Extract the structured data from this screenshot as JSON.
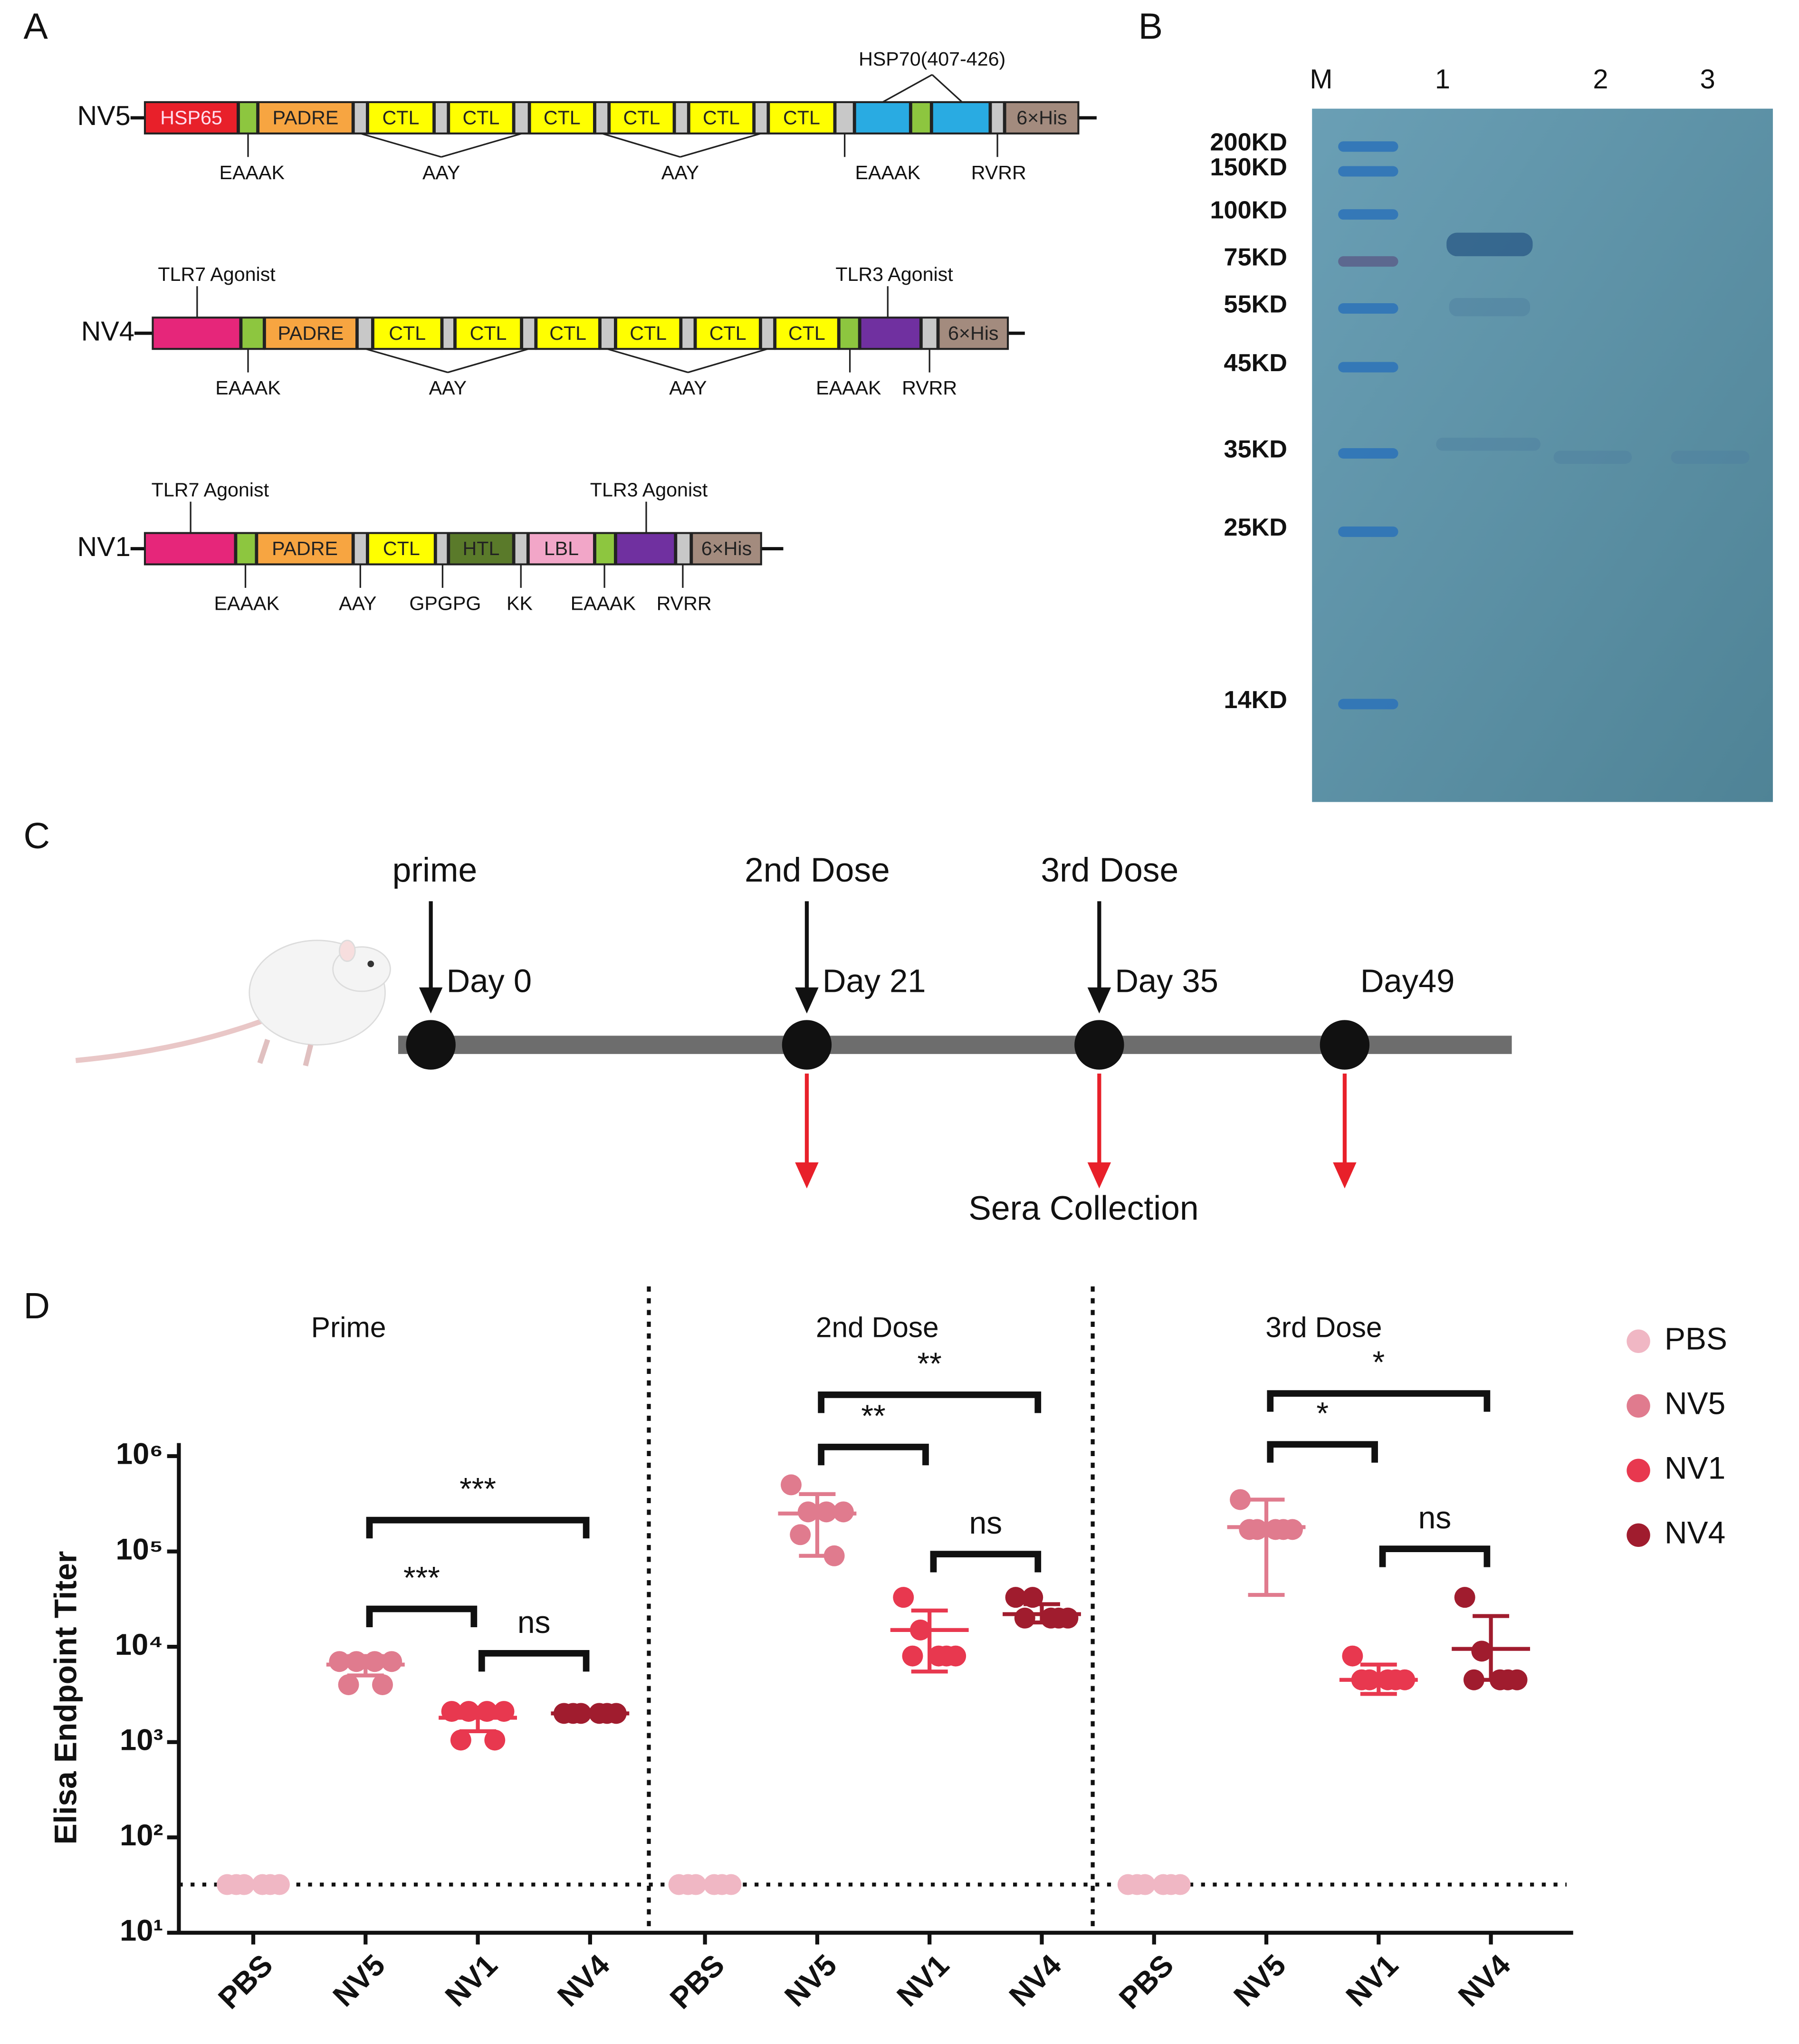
{
  "panels": {
    "A": {
      "letter": "A",
      "constructs": [
        {
          "name": "NV5",
          "segments": [
            "HSP65",
            "PADRE",
            "CTL",
            "CTL",
            "CTL",
            "CTL",
            "CTL",
            "CTL",
            "6×His"
          ],
          "linkers": [
            "EAAAK",
            "AAY",
            "AAY",
            "EAAAK",
            "RVRR"
          ],
          "top": [
            "HSP70(407-426)"
          ]
        },
        {
          "name": "NV4",
          "segments": [
            "PADRE",
            "CTL",
            "CTL",
            "CTL",
            "CTL",
            "CTL",
            "CTL",
            "6×His"
          ],
          "linkers": [
            "EAAAK",
            "AAY",
            "AAY",
            "EAAAK",
            "RVRR"
          ],
          "top": [
            "TLR7 Agonist",
            "TLR3 Agonist"
          ]
        },
        {
          "name": "NV1",
          "segments": [
            "PADRE",
            "CTL",
            "HTL",
            "LBL",
            "6×His"
          ],
          "linkers": [
            "EAAAK",
            "AAY",
            "GPGPG",
            "KK",
            "EAAAK",
            "RVRR"
          ],
          "top": [
            "TLR7 Agonist",
            "TLR3 Agonist"
          ]
        }
      ]
    },
    "B": {
      "letter": "B",
      "lanes": [
        "M",
        "1",
        "2",
        "3"
      ],
      "markers": [
        "200KD",
        "150KD",
        "100KD",
        "75KD",
        "55KD",
        "45KD",
        "35KD",
        "25KD",
        "14KD"
      ]
    },
    "C": {
      "letter": "C",
      "doses": [
        "prime",
        "2nd Dose",
        "3rd Dose"
      ],
      "days": [
        "Day 0",
        "Day 21",
        "Day 35",
        "Day49"
      ],
      "collection": "Sera Collection"
    }
  },
  "chart_data": {
    "type": "scatter",
    "letter": "D",
    "ylabel": "Elisa Endpoint Titer",
    "ylog": true,
    "ylim": [
      10,
      1000000
    ],
    "yticks": [
      {
        "value": 10,
        "label": "10¹"
      },
      {
        "value": 100,
        "label": "10²"
      },
      {
        "value": 1000,
        "label": "10³"
      },
      {
        "value": 10000,
        "label": "10⁴"
      },
      {
        "value": 100000,
        "label": "10⁵"
      },
      {
        "value": 1000000,
        "label": "10⁶"
      }
    ],
    "detection_limit": 32,
    "legend": [
      {
        "name": "PBS",
        "color": "#f0b7c4"
      },
      {
        "name": "NV5",
        "color": "#e07b8e"
      },
      {
        "name": "NV1",
        "color": "#e8384f"
      },
      {
        "name": "NV4",
        "color": "#a01c2e"
      }
    ],
    "subplots": [
      {
        "title": "Prime",
        "categories": [
          "PBS",
          "NV5",
          "NV1",
          "NV4"
        ],
        "significance": [
          "***",
          "ns",
          "***"
        ],
        "groups": [
          {
            "points": [
              32,
              32,
              32,
              32,
              32,
              32
            ]
          },
          {
            "points": [
              7000,
              7000,
              7000,
              7000,
              4000,
              4000
            ],
            "mean": 6500,
            "error": [
              5000,
              8000
            ]
          },
          {
            "points": [
              2100,
              2100,
              2100,
              2100,
              1050,
              1050
            ],
            "mean": 1800,
            "error": [
              1300,
              2300
            ]
          },
          {
            "points": [
              2000,
              2000,
              2000,
              2000,
              2000,
              2000
            ],
            "mean": 2000,
            "error": [
              2000,
              2000
            ]
          }
        ]
      },
      {
        "title": "2nd Dose",
        "categories": [
          "PBS",
          "NV5",
          "NV1",
          "NV4"
        ],
        "significance": [
          "**",
          "ns",
          "**"
        ],
        "groups": [
          {
            "points": [
              32,
              32,
              32,
              32,
              32,
              32
            ]
          },
          {
            "points": [
              500000,
              260000,
              260000,
              260000,
              150000,
              90000
            ],
            "mean": 250000,
            "error": [
              90000,
              400000
            ]
          },
          {
            "points": [
              33000,
              15000,
              8000,
              8000,
              8000,
              8000
            ],
            "mean": 15000,
            "error": [
              5500,
              24000
            ]
          },
          {
            "points": [
              33000,
              33000,
              20000,
              20000,
              20000,
              20000
            ],
            "mean": 22000,
            "error": [
              18000,
              28000
            ]
          }
        ]
      },
      {
        "title": "3rd Dose",
        "categories": [
          "PBS",
          "NV5",
          "NV1",
          "NV4"
        ],
        "significance": [
          "*",
          "ns",
          "*"
        ],
        "groups": [
          {
            "points": [
              32,
              32,
              32,
              32,
              32,
              32
            ]
          },
          {
            "points": [
              350000,
              170000,
              170000,
              170000,
              170000,
              170000
            ],
            "mean": 180000,
            "error": [
              35000,
              350000
            ]
          },
          {
            "points": [
              8000,
              4500,
              4500,
              4500,
              4500,
              4500
            ],
            "mean": 4500,
            "error": [
              3200,
              6500
            ]
          },
          {
            "points": [
              33000,
              9000,
              4500,
              4500,
              4500,
              4500
            ],
            "mean": 9500,
            "error": [
              4500,
              21000
            ]
          }
        ]
      }
    ]
  }
}
